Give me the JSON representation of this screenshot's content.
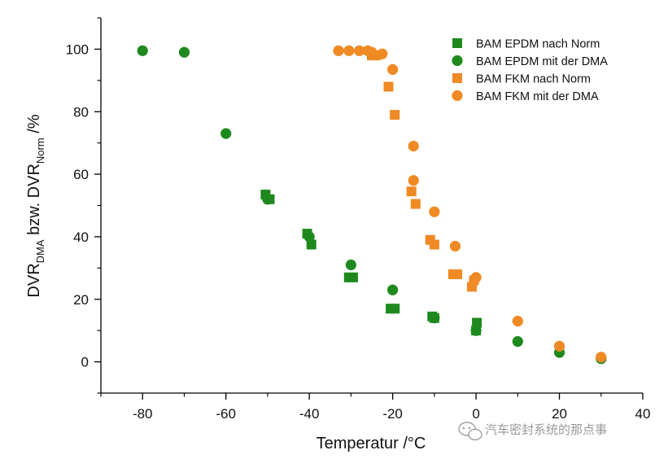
{
  "chart_data": {
    "type": "scatter",
    "title": "",
    "xlabel": "Temperatur /°C",
    "ylabel": {
      "parts": [
        "DVR",
        "DMA",
        " bzw. DVR",
        "Norm",
        " /%"
      ]
    },
    "xlim": [
      -90,
      40
    ],
    "ylim": [
      -10,
      110
    ],
    "x_ticks": [
      -80,
      -60,
      -40,
      -20,
      0,
      20,
      40
    ],
    "y_ticks": [
      0,
      20,
      40,
      60,
      80,
      100
    ],
    "x_tick_labels": [
      "-80",
      "-60",
      "-40",
      "-20",
      "0",
      "20",
      "40"
    ],
    "y_tick_labels": [
      "0",
      "20",
      "40",
      "60",
      "80",
      "100"
    ],
    "grid": false,
    "legend_position": "top-right",
    "series": [
      {
        "name": "BAM EPDM nach Norm",
        "marker": "square",
        "color": "#1e8a1e",
        "points": [
          [
            -50.5,
            53.5
          ],
          [
            -49.5,
            52
          ],
          [
            -40.5,
            41
          ],
          [
            -39.5,
            37.5
          ],
          [
            -30.5,
            27
          ],
          [
            -29.5,
            27
          ],
          [
            -20.5,
            17
          ],
          [
            -19.5,
            17
          ],
          [
            -10.5,
            14.5
          ],
          [
            -10,
            14
          ],
          [
            0,
            10
          ],
          [
            0.2,
            12.5
          ]
        ]
      },
      {
        "name": "BAM EPDM mit der DMA",
        "marker": "circle",
        "color": "#1e8a1e",
        "points": [
          [
            -80,
            99.5
          ],
          [
            -70,
            99
          ],
          [
            -60,
            73
          ],
          [
            -50,
            52
          ],
          [
            -40,
            40
          ],
          [
            -30,
            31
          ],
          [
            -20,
            23
          ],
          [
            -10,
            14
          ],
          [
            0,
            10
          ],
          [
            10,
            6.5
          ],
          [
            20,
            3
          ],
          [
            30,
            1
          ]
        ]
      },
      {
        "name": "BAM FKM nach Norm",
        "marker": "square",
        "color": "#f08a24",
        "points": [
          [
            -25,
            98
          ],
          [
            -24,
            98
          ],
          [
            -21,
            88
          ],
          [
            -19.5,
            79
          ],
          [
            -15.5,
            54.5
          ],
          [
            -14.5,
            50.5
          ],
          [
            -11,
            39
          ],
          [
            -10,
            37.5
          ],
          [
            -5.5,
            28
          ],
          [
            -4.5,
            28
          ],
          [
            -1,
            24
          ],
          [
            -0.5,
            26
          ]
        ]
      },
      {
        "name": "BAM FKM mit der DMA",
        "marker": "circle",
        "color": "#f08a24",
        "points": [
          [
            -33,
            99.5
          ],
          [
            -30.5,
            99.5
          ],
          [
            -28,
            99.5
          ],
          [
            -26,
            99.5
          ],
          [
            -25,
            99
          ],
          [
            -22.5,
            98.5
          ],
          [
            -20,
            93.5
          ],
          [
            -15,
            69
          ],
          [
            -15,
            58
          ],
          [
            -10,
            48
          ],
          [
            -5,
            37
          ],
          [
            0,
            27
          ],
          [
            10,
            13
          ],
          [
            20,
            5
          ],
          [
            30,
            1.5
          ]
        ]
      }
    ]
  },
  "watermark": {
    "icon": "chat-bubble-icon",
    "text": "汽车密封系统的那点事"
  }
}
